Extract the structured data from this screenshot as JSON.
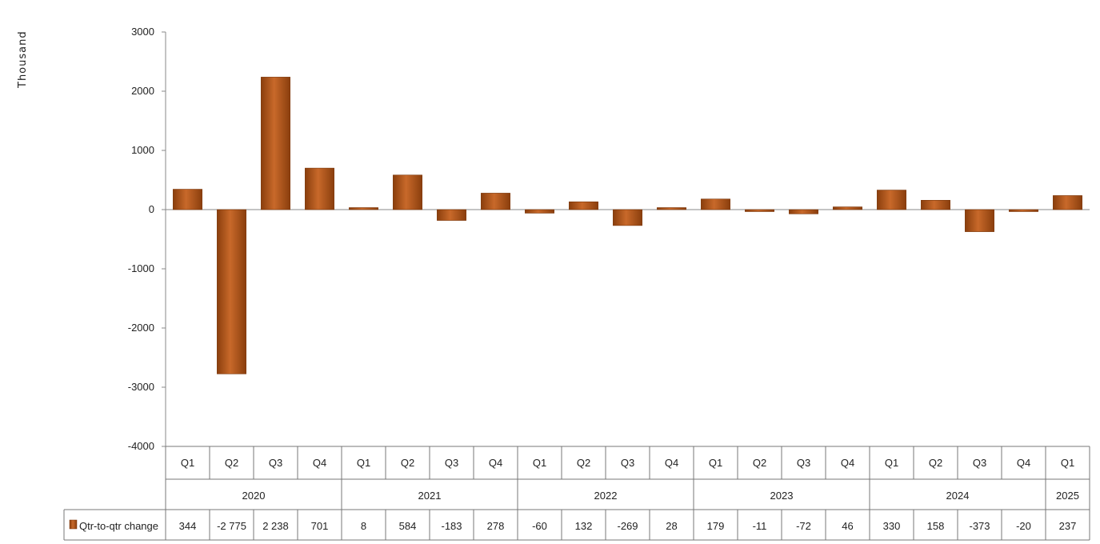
{
  "chart_data": {
    "type": "bar",
    "title": "",
    "ylabel": "Thousand",
    "xlabel": "",
    "ylim": [
      -4000,
      3000
    ],
    "yticks": [
      3000,
      2000,
      1000,
      0,
      -1000,
      -2000,
      -3000,
      -4000
    ],
    "grid": false,
    "legend": "data-table",
    "categories": [
      "Q1",
      "Q2",
      "Q3",
      "Q4",
      "Q1",
      "Q2",
      "Q3",
      "Q4",
      "Q1",
      "Q2",
      "Q3",
      "Q4",
      "Q1",
      "Q2",
      "Q3",
      "Q4",
      "Q1",
      "Q2",
      "Q3",
      "Q4",
      "Q1"
    ],
    "years": [
      {
        "label": "2020",
        "count": 4
      },
      {
        "label": "2021",
        "count": 4
      },
      {
        "label": "2022",
        "count": 4
      },
      {
        "label": "2023",
        "count": 4
      },
      {
        "label": "2024",
        "count": 4
      },
      {
        "label": "2025",
        "count": 1
      }
    ],
    "series": [
      {
        "name": "Qtr-to-qtr change",
        "color": "#b85a1c",
        "values": [
          344,
          -2775,
          2238,
          701,
          8,
          584,
          -183,
          278,
          -60,
          132,
          -269,
          28,
          179,
          -11,
          -72,
          46,
          330,
          158,
          -373,
          -20,
          237
        ],
        "value_labels": [
          "344",
          "-2 775",
          "2 238",
          "701",
          "8",
          "584",
          "-183",
          "278",
          "-60",
          "132",
          "-269",
          "28",
          "179",
          "-11",
          "-72",
          "46",
          "330",
          "158",
          "-373",
          "-20",
          "237"
        ]
      }
    ]
  }
}
